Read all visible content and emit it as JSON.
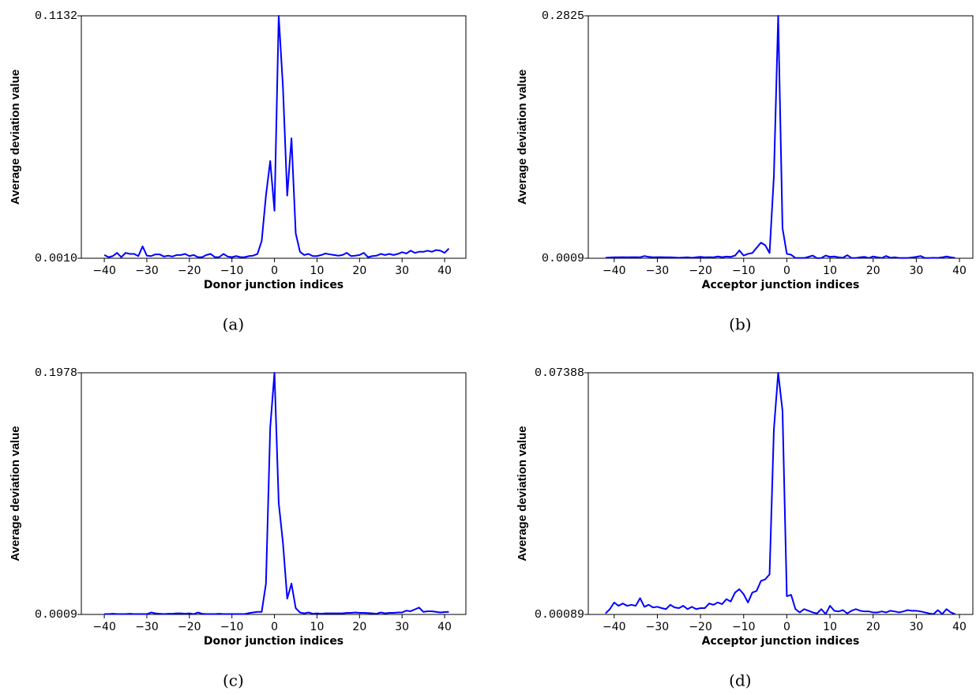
{
  "chart_data": [
    {
      "type": "line",
      "caption": "(a)",
      "x_label": "Donor junction indices",
      "y_label": "Average deviation value",
      "color": "#0000ff",
      "x": [
        -40,
        -39,
        -38,
        -37,
        -36,
        -35,
        -34,
        -33,
        -32,
        -31,
        -30,
        -29,
        -28,
        -27,
        -26,
        -25,
        -24,
        -23,
        -22,
        -21,
        -20,
        -19,
        -18,
        -17,
        -16,
        -15,
        -14,
        -13,
        -12,
        -11,
        -10,
        -9,
        -8,
        -7,
        -6,
        -5,
        -4,
        -3,
        -2,
        -1,
        0,
        1,
        2,
        3,
        4,
        5,
        6,
        7,
        8,
        9,
        10,
        11,
        12,
        13,
        14,
        15,
        16,
        17,
        18,
        19,
        20,
        21,
        22,
        23,
        24,
        25,
        26,
        27,
        28,
        29,
        30,
        31,
        32,
        33,
        34,
        35,
        36,
        37,
        38,
        39,
        40,
        41
      ],
      "values": [
        0.0025,
        0.0015,
        0.002,
        0.0035,
        0.0015,
        0.0035,
        0.003,
        0.003,
        0.002,
        0.0065,
        0.0022,
        0.002,
        0.0028,
        0.0028,
        0.0018,
        0.0022,
        0.0018,
        0.0025,
        0.0025,
        0.003,
        0.002,
        0.0025,
        0.0015,
        0.0015,
        0.0025,
        0.003,
        0.0015,
        0.0015,
        0.003,
        0.0018,
        0.0015,
        0.002,
        0.0015,
        0.0015,
        0.002,
        0.0022,
        0.003,
        0.009,
        0.03,
        0.046,
        0.023,
        0.1132,
        0.08,
        0.03,
        0.0565,
        0.0125,
        0.004,
        0.0025,
        0.003,
        0.002,
        0.002,
        0.0025,
        0.0032,
        0.0028,
        0.0025,
        0.0022,
        0.0025,
        0.0035,
        0.002,
        0.0022,
        0.0025,
        0.0035,
        0.0015,
        0.002,
        0.0022,
        0.003,
        0.0025,
        0.003,
        0.0025,
        0.003,
        0.0038,
        0.0032,
        0.0045,
        0.0035,
        0.004,
        0.004,
        0.0045,
        0.004,
        0.0048,
        0.0045,
        0.0035,
        0.0055
      ],
      "xlim": [
        -45.4,
        45
      ],
      "xticks": [
        {
          "value": -40,
          "label": "−40"
        },
        {
          "value": -30,
          "label": "−30"
        },
        {
          "value": -20,
          "label": "−20"
        },
        {
          "value": -10,
          "label": "−10"
        },
        0,
        10,
        20,
        30,
        40
      ],
      "ylim": [
        0.001,
        0.1132
      ],
      "yticks": [
        {
          "value": 0.001,
          "label": "0.0010"
        },
        0.1132
      ]
    },
    {
      "type": "line",
      "caption": "(b)",
      "x_label": "Acceptor junction indices",
      "y_label": "Average deviation value",
      "color": "#0000ff",
      "x": [
        -42,
        -41,
        -40,
        -39,
        -38,
        -37,
        -36,
        -35,
        -34,
        -33,
        -32,
        -31,
        -30,
        -29,
        -28,
        -27,
        -26,
        -25,
        -24,
        -23,
        -22,
        -21,
        -20,
        -19,
        -18,
        -17,
        -16,
        -15,
        -14,
        -13,
        -12,
        -11,
        -10,
        -9,
        -8,
        -7,
        -6,
        -5,
        -4,
        -3,
        -2,
        -1,
        0,
        1,
        2,
        3,
        4,
        5,
        6,
        7,
        8,
        9,
        10,
        11,
        12,
        13,
        14,
        15,
        16,
        17,
        18,
        19,
        20,
        21,
        22,
        23,
        24,
        25,
        26,
        27,
        28,
        29,
        30,
        31,
        32,
        33,
        34,
        35,
        36,
        37,
        38,
        39
      ],
      "values": [
        0.0015,
        0.0018,
        0.002,
        0.002,
        0.0022,
        0.002,
        0.0022,
        0.0022,
        0.002,
        0.0035,
        0.0025,
        0.002,
        0.0022,
        0.0022,
        0.002,
        0.002,
        0.0018,
        0.0015,
        0.0018,
        0.002,
        0.0015,
        0.002,
        0.0025,
        0.002,
        0.0022,
        0.002,
        0.003,
        0.0022,
        0.0028,
        0.0025,
        0.004,
        0.01,
        0.004,
        0.006,
        0.007,
        0.013,
        0.019,
        0.016,
        0.007,
        0.096,
        0.2825,
        0.036,
        0.006,
        0.005,
        0.0012,
        0.0012,
        0.0012,
        0.0025,
        0.004,
        0.001,
        0.0012,
        0.004,
        0.0025,
        0.003,
        0.002,
        0.0015,
        0.0045,
        0.0012,
        0.0012,
        0.002,
        0.0025,
        0.0012,
        0.003,
        0.002,
        0.0012,
        0.0035,
        0.0015,
        0.002,
        0.0012,
        0.0012,
        0.0012,
        0.0018,
        0.0025,
        0.0035,
        0.0012,
        0.0012,
        0.0015,
        0.0012,
        0.002,
        0.003,
        0.002,
        0.0012
      ],
      "xlim": [
        -46,
        43.1
      ],
      "xticks": [
        {
          "value": -40,
          "label": "−40"
        },
        {
          "value": -30,
          "label": "−30"
        },
        {
          "value": -20,
          "label": "−20"
        },
        {
          "value": -10,
          "label": "−10"
        },
        0,
        10,
        20,
        30,
        40
      ],
      "ylim": [
        0.0009,
        0.2825
      ],
      "yticks": [
        0.0009,
        0.2825
      ]
    },
    {
      "type": "line",
      "caption": "(c)",
      "x_label": "Donor junction indices",
      "y_label": "Average deviation value",
      "color": "#0000ff",
      "x": [
        -40,
        -39,
        -38,
        -37,
        -36,
        -35,
        -34,
        -33,
        -32,
        -31,
        -30,
        -29,
        -28,
        -27,
        -26,
        -25,
        -24,
        -23,
        -22,
        -21,
        -20,
        -19,
        -18,
        -17,
        -16,
        -15,
        -14,
        -13,
        -12,
        -11,
        -10,
        -9,
        -8,
        -7,
        -6,
        -5,
        -4,
        -3,
        -2,
        -1,
        0,
        1,
        2,
        3,
        4,
        5,
        6,
        7,
        8,
        9,
        10,
        11,
        12,
        13,
        14,
        15,
        16,
        17,
        18,
        19,
        20,
        21,
        22,
        23,
        24,
        25,
        26,
        27,
        28,
        29,
        30,
        31,
        32,
        33,
        34,
        35,
        36,
        37,
        38,
        39,
        40,
        41
      ],
      "values": [
        0.0012,
        0.0012,
        0.0015,
        0.0012,
        0.0012,
        0.0012,
        0.0015,
        0.0012,
        0.0012,
        0.0012,
        0.0012,
        0.0025,
        0.0018,
        0.0015,
        0.0012,
        0.0015,
        0.0015,
        0.0018,
        0.0018,
        0.0015,
        0.0018,
        0.0012,
        0.0025,
        0.0015,
        0.0012,
        0.0012,
        0.0012,
        0.0015,
        0.0012,
        0.0012,
        0.0012,
        0.0012,
        0.0012,
        0.0012,
        0.002,
        0.0025,
        0.003,
        0.003,
        0.026,
        0.153,
        0.1978,
        0.0917,
        0.059,
        0.0138,
        0.026,
        0.006,
        0.0025,
        0.0018,
        0.0025,
        0.0015,
        0.0018,
        0.0015,
        0.0018,
        0.0018,
        0.0018,
        0.0018,
        0.0018,
        0.0022,
        0.0022,
        0.0025,
        0.0022,
        0.0022,
        0.002,
        0.0018,
        0.0015,
        0.0025,
        0.0018,
        0.0022,
        0.0022,
        0.0025,
        0.0025,
        0.004,
        0.0035,
        0.005,
        0.0065,
        0.003,
        0.0035,
        0.0035,
        0.003,
        0.0025,
        0.0028,
        0.003
      ],
      "xlim": [
        -45.4,
        45
      ],
      "xticks": [
        {
          "value": -40,
          "label": "−40"
        },
        {
          "value": -30,
          "label": "−30"
        },
        {
          "value": -20,
          "label": "−20"
        },
        {
          "value": -10,
          "label": "−10"
        },
        0,
        10,
        20,
        30,
        40
      ],
      "ylim": [
        0.0009,
        0.1978
      ],
      "yticks": [
        0.0009,
        0.1978
      ]
    },
    {
      "type": "line",
      "caption": "(d)",
      "x_label": "Acceptor junction indices",
      "y_label": "Average deviation value",
      "color": "#0000ff",
      "x": [
        -42,
        -41,
        -40,
        -39,
        -38,
        -37,
        -36,
        -35,
        -34,
        -33,
        -32,
        -31,
        -30,
        -29,
        -28,
        -27,
        -26,
        -25,
        -24,
        -23,
        -22,
        -21,
        -20,
        -19,
        -18,
        -17,
        -16,
        -15,
        -14,
        -13,
        -12,
        -11,
        -10,
        -9,
        -8,
        -7,
        -6,
        -5,
        -4,
        -3,
        -2,
        -1,
        0,
        1,
        2,
        3,
        4,
        5,
        6,
        7,
        8,
        9,
        10,
        11,
        12,
        13,
        14,
        15,
        16,
        17,
        18,
        19,
        20,
        21,
        22,
        23,
        24,
        25,
        26,
        27,
        28,
        29,
        30,
        31,
        32,
        33,
        34,
        35,
        36,
        37,
        38,
        39
      ],
      "values": [
        0.0012,
        0.0025,
        0.0045,
        0.0035,
        0.0042,
        0.0035,
        0.0038,
        0.0035,
        0.0058,
        0.0032,
        0.0038,
        0.003,
        0.0032,
        0.0028,
        0.0025,
        0.0038,
        0.003,
        0.0028,
        0.0035,
        0.0025,
        0.0032,
        0.0025,
        0.0028,
        0.0028,
        0.0042,
        0.0038,
        0.0045,
        0.004,
        0.0055,
        0.0048,
        0.0075,
        0.0085,
        0.007,
        0.0045,
        0.0075,
        0.008,
        0.011,
        0.0115,
        0.013,
        0.0567,
        0.07388,
        0.0624,
        0.0064,
        0.0068,
        0.0025,
        0.0015,
        0.0025,
        0.002,
        0.0015,
        0.0012,
        0.0025,
        0.001,
        0.0035,
        0.002,
        0.0018,
        0.0022,
        0.0012,
        0.002,
        0.0025,
        0.002,
        0.0018,
        0.0018,
        0.0015,
        0.0015,
        0.0018,
        0.0015,
        0.002,
        0.0018,
        0.0015,
        0.0018,
        0.0022,
        0.002,
        0.002,
        0.0018,
        0.0015,
        0.0012,
        0.001,
        0.0022,
        0.001,
        0.0025,
        0.0015,
        0.001
      ],
      "xlim": [
        -46,
        43.1
      ],
      "xticks": [
        {
          "value": -40,
          "label": "−40"
        },
        {
          "value": -30,
          "label": "−30"
        },
        {
          "value": -20,
          "label": "−20"
        },
        {
          "value": -10,
          "label": "−10"
        },
        0,
        10,
        20,
        30,
        40
      ],
      "ylim": [
        0.00089,
        0.07388
      ],
      "yticks": [
        0.00089,
        0.07388
      ]
    }
  ]
}
